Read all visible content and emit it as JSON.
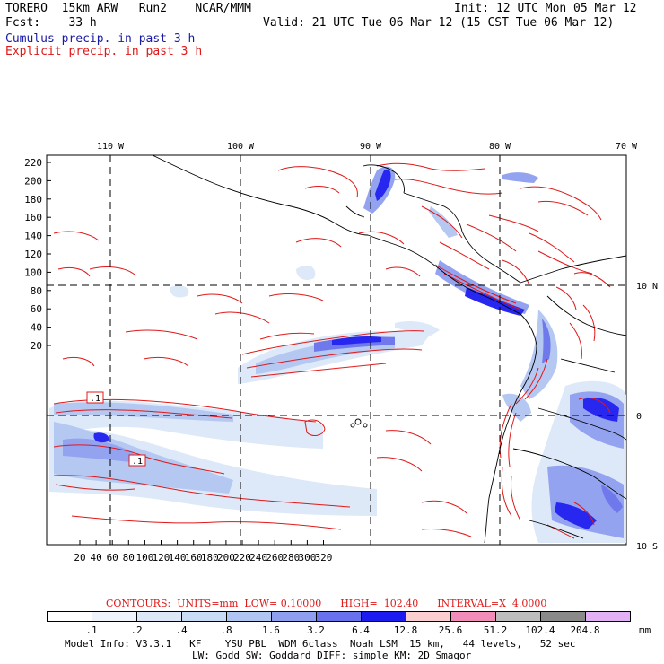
{
  "header": {
    "line1_left": "TORERO  15km ARW   Run2    NCAR/MMM",
    "line1_right": "Init: 12 UTC Mon 05 Mar 12",
    "line2_left": "Fcst:    33 h",
    "line2_right": "Valid: 21 UTC Tue 06 Mar 12 (15 CST Tue 06 Mar 12)",
    "field1": "Cumulus precip. in past 3 h",
    "field2": "Explicit precip. in past 3 h"
  },
  "colors": {
    "cumulus_text": "#1a1aa8",
    "explicit_text": "#e01818",
    "contour": "#e01818",
    "grid": "#000000"
  },
  "map": {
    "top_lon_labels": [
      "110 W",
      "100 W",
      "90 W",
      "80 W",
      "70 W"
    ],
    "right_lat_labels": [
      "10 N",
      "0",
      "10 S"
    ],
    "left_ticks": [
      "220",
      "200",
      "180",
      "160",
      "140",
      "120",
      "100",
      "80",
      "60",
      "40",
      "20"
    ],
    "bottom_ticks": [
      "20",
      "40",
      "60",
      "80",
      "100",
      "120",
      "140",
      "160",
      "180",
      "200",
      "220",
      "240",
      "260",
      "280",
      "300",
      "320"
    ],
    "contour_labels": [
      ".1",
      ".1"
    ]
  },
  "legend": {
    "contours_line": "CONTOURS:  UNITS=mm  LOW= 0.10000      HIGH=  102.40      INTERVAL=X  4.0000",
    "colorbar_values": [
      ".1",
      ".2",
      ".4",
      ".8",
      "1.6",
      "3.2",
      "6.4",
      "12.8",
      "25.6",
      "51.2",
      "102.4",
      "204.8"
    ],
    "colorbar_colors": [
      "#ffffff",
      "#eef3fc",
      "#dce8f8",
      "#c8dcf6",
      "#b0c6f2",
      "#8e9ff0",
      "#6872ec",
      "#1c1cf0",
      "#fbcfcf",
      "#f28cb8",
      "#bdbdbd",
      "#8a8a8a",
      "#e1b0f5"
    ],
    "units": "mm"
  },
  "model_info": {
    "line1": "Model Info: V3.3.1   KF    YSU PBL  WDM 6class  Noah LSM  15 km,   44 levels,   52 sec",
    "line2": "LW: Godd SW: Goddard DIFF: simple KM: 2D Smagor"
  }
}
